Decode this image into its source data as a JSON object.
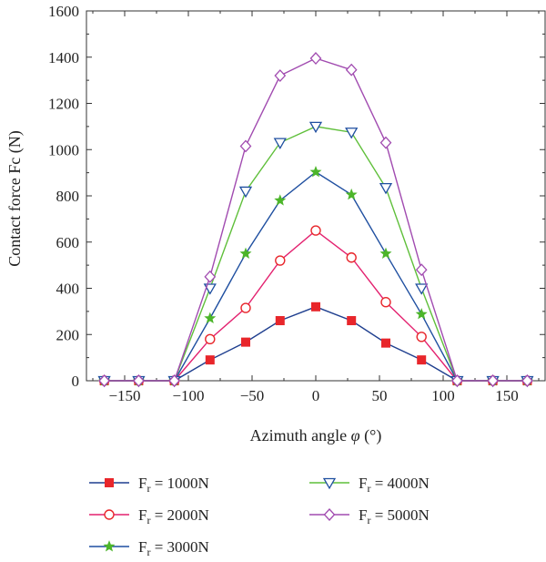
{
  "chart_data": {
    "type": "line",
    "xlabel_main": "Azimuth angle ",
    "xlabel_symbol": "φ",
    "xlabel_unit": " (°)",
    "ylabel": "Contact force Fc (N)",
    "xlim": [
      -180,
      180
    ],
    "ylim": [
      0,
      1600
    ],
    "x_ticks": [
      -150,
      -100,
      -50,
      0,
      50,
      100,
      150
    ],
    "x_tick_labels": [
      "−150",
      "−100",
      "−50",
      "0",
      "50",
      "100",
      "150"
    ],
    "y_ticks": [
      0,
      200,
      400,
      600,
      800,
      1000,
      1200,
      1400,
      1600
    ],
    "y_tick_labels": [
      "0",
      "200",
      "400",
      "600",
      "800",
      "1000",
      "1200",
      "1400",
      "1600"
    ],
    "x": [
      -166,
      -139,
      -111,
      -83,
      -55,
      -28,
      0,
      28,
      55,
      83,
      111,
      139,
      166
    ],
    "series": [
      {
        "name_prefix": "F",
        "name_sub": "r",
        "name_suffix": " = 1000N",
        "color": "#1f3f8f",
        "marker": "square",
        "marker_color": "#e8262b",
        "values": [
          0,
          0,
          0,
          90,
          167,
          260,
          320,
          260,
          163,
          90,
          0,
          0,
          0
        ]
      },
      {
        "name_prefix": "F",
        "name_sub": "r",
        "name_suffix": " = 2000N",
        "color": "#e3216f",
        "marker": "circle",
        "marker_color": "#e8262b",
        "values": [
          0,
          0,
          0,
          180,
          315,
          520,
          650,
          533,
          340,
          190,
          0,
          0,
          0
        ]
      },
      {
        "name_prefix": "F",
        "name_sub": "r",
        "name_suffix": " = 3000N",
        "color": "#1f4fa0",
        "marker": "star",
        "marker_color": "#4cb52a",
        "values": [
          0,
          0,
          0,
          270,
          550,
          780,
          903,
          805,
          550,
          288,
          0,
          0,
          0
        ]
      },
      {
        "name_prefix": "F",
        "name_sub": "r",
        "name_suffix": " = 4000N",
        "color": "#5fbf3a",
        "marker": "triangle-down",
        "marker_color": "#1f4fa0",
        "values": [
          0,
          0,
          0,
          400,
          820,
          1030,
          1100,
          1075,
          835,
          400,
          0,
          0,
          0
        ]
      },
      {
        "name_prefix": "F",
        "name_sub": "r",
        "name_suffix": " = 5000N",
        "color": "#a14bb0",
        "marker": "diamond",
        "marker_color": "#a14bb0",
        "values": [
          0,
          0,
          0,
          450,
          1015,
          1320,
          1395,
          1345,
          1030,
          480,
          0,
          0,
          0
        ]
      }
    ],
    "legend_position": "bottom"
  }
}
